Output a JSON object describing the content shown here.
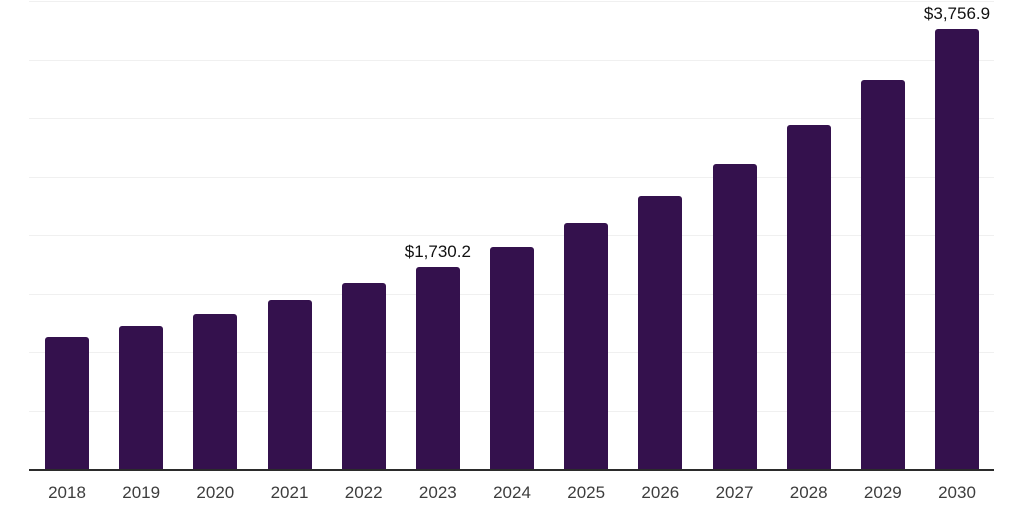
{
  "chart_data": {
    "type": "bar",
    "title": "",
    "xlabel": "",
    "ylabel": "",
    "categories": [
      "2018",
      "2019",
      "2020",
      "2021",
      "2022",
      "2023",
      "2024",
      "2025",
      "2026",
      "2027",
      "2028",
      "2029",
      "2030"
    ],
    "values": [
      1127,
      1221,
      1324,
      1443,
      1588,
      1730.2,
      1896,
      2101,
      2331,
      2605,
      2938,
      3322,
      3756.9
    ],
    "data_labels": {
      "2023": "$1,730.2",
      "2030": "$3,756.9"
    },
    "ylim": [
      0,
      4000
    ],
    "ytick_interval": 500,
    "grid": true,
    "legend": "none",
    "y_axis_tick_labels_visible": false,
    "colors": {
      "bar": "#34114d",
      "gridline": "#f0f0f0",
      "axis_line": "#2b2b2b",
      "x_tick_label": "#3d3d3d",
      "data_label": "#111111",
      "background": "#ffffff"
    }
  }
}
